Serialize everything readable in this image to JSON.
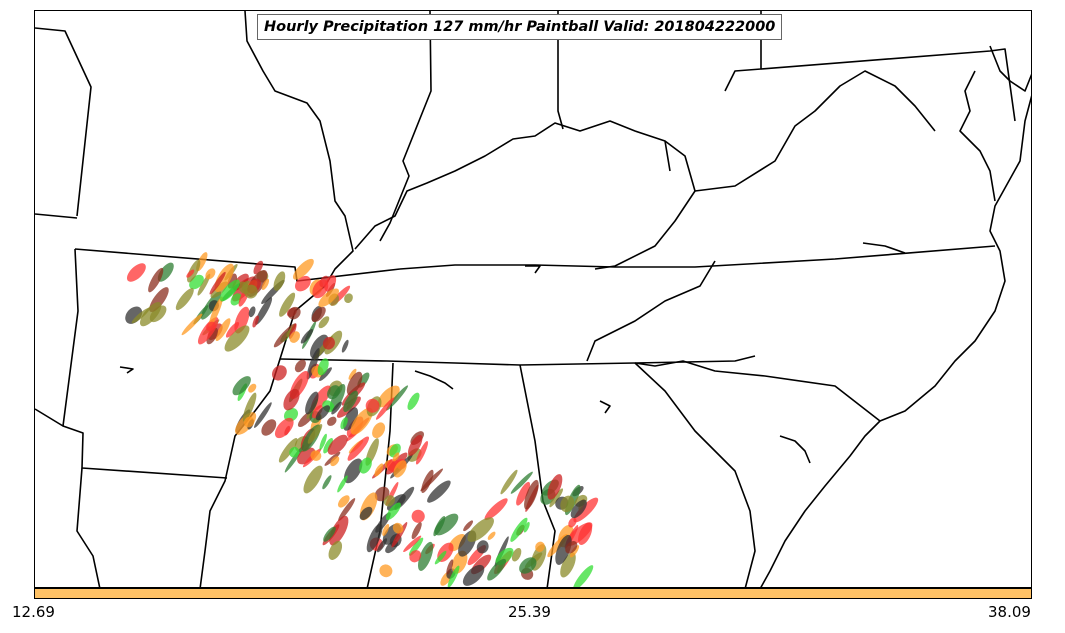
{
  "title": "Hourly Precipitation 127 mm/hr Paintball Valid: 201804222000",
  "colorbar": {
    "color": "#ffc266",
    "ticks": [
      "12.69",
      "25.39",
      "38.09"
    ]
  },
  "colors": {
    "outline": "#000000",
    "members": [
      "#33dd33",
      "#ff9922",
      "#cc2222",
      "#8b8b2a",
      "#8b2d1e",
      "#333333",
      "#2e7d32",
      "#ff3333"
    ]
  }
}
